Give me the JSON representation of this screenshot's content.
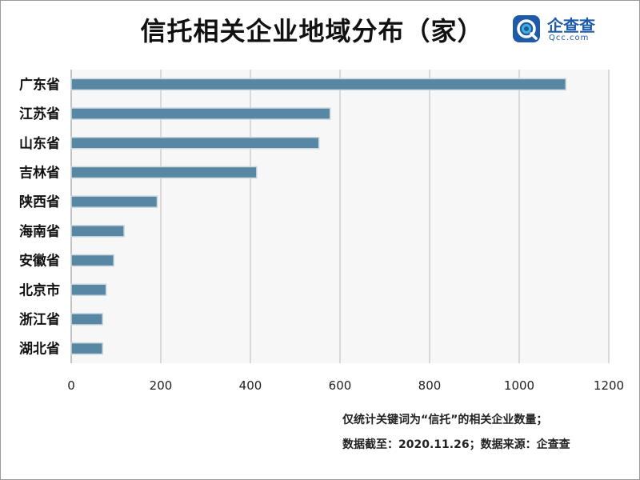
{
  "logo": {
    "name": "企查查",
    "sub": "Qcc.com",
    "accent_color": "#1e5aa8",
    "mark_color": "#3fb2d6"
  },
  "notes": {
    "line1": "仅统计关键词为“信托”的相关企业数量；",
    "line2": "数据截至：2020.11.26；数据来源：企查查"
  },
  "chart_data": {
    "type": "bar",
    "orientation": "horizontal",
    "title": "信托相关企业地域分布（家）",
    "categories": [
      "广东省",
      "江苏省",
      "山东省",
      "吉林省",
      "陕西省",
      "海南省",
      "安徽省",
      "北京市",
      "浙江省",
      "湖北省"
    ],
    "values": [
      1104,
      578,
      553,
      414,
      192,
      118,
      95,
      78,
      70,
      70
    ],
    "xlim": [
      0,
      1200
    ],
    "xticks": [
      0,
      200,
      400,
      600,
      800,
      1000,
      1200
    ],
    "grid": true,
    "bar_color": "#5787a3",
    "bar_outline_color": "#c8d6de",
    "plot_background": "#f7f7f7",
    "grid_color": "#cfcfcf"
  }
}
